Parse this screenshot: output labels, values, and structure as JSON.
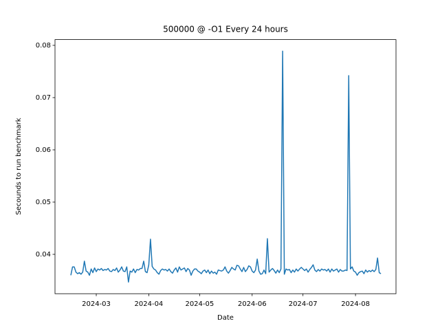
{
  "chart_data": {
    "type": "line",
    "title": "500000 @ -O1 Every 24 hours",
    "x_label": "Date",
    "y_label": "Secounds to run benchmark",
    "color": "#1f77b4",
    "x": [
      45,
      46,
      47,
      48,
      49,
      50,
      51,
      52,
      53,
      54,
      55,
      56,
      57,
      58,
      59,
      60,
      61,
      62,
      63,
      64,
      65,
      66,
      67,
      68,
      69,
      70,
      71,
      72,
      73,
      74,
      75,
      76,
      77,
      78,
      79,
      80,
      81,
      82,
      83,
      84,
      85,
      86,
      87,
      88,
      89,
      90,
      91,
      92,
      93,
      94,
      95,
      96,
      97,
      98,
      99,
      100,
      101,
      102,
      103,
      104,
      105,
      106,
      107,
      108,
      109,
      110,
      111,
      112,
      113,
      114,
      115,
      116,
      117,
      118,
      119,
      120,
      121,
      122,
      123,
      124,
      125,
      126,
      127,
      128,
      129,
      130,
      131,
      132,
      133,
      134,
      135,
      136,
      137,
      138,
      139,
      140,
      141,
      142,
      143,
      144,
      145,
      146,
      147,
      148,
      149,
      150,
      151,
      152,
      153,
      154,
      155,
      156,
      157,
      158,
      159,
      160,
      161,
      162,
      163,
      164,
      165,
      166,
      167,
      168,
      169,
      170,
      171,
      172,
      173,
      174,
      175,
      176,
      177,
      178,
      179,
      180,
      181,
      182,
      183,
      184,
      185,
      186,
      187,
      188,
      189,
      190,
      191,
      192,
      193,
      194,
      195,
      196,
      197,
      198,
      199,
      200,
      201,
      202,
      203,
      204,
      205,
      206,
      207,
      208,
      209,
      210,
      211,
      212,
      213,
      214,
      215,
      216,
      217,
      218,
      219,
      220,
      221,
      222,
      223,
      224,
      225,
      226,
      227,
      228
    ],
    "values": [
      0.036,
      0.0376,
      0.0376,
      0.0366,
      0.0363,
      0.0365,
      0.0362,
      0.0366,
      0.0387,
      0.0368,
      0.0366,
      0.036,
      0.0372,
      0.0365,
      0.0374,
      0.0367,
      0.0372,
      0.037,
      0.0373,
      0.0369,
      0.0371,
      0.037,
      0.0373,
      0.0368,
      0.0367,
      0.0371,
      0.0369,
      0.0374,
      0.0366,
      0.037,
      0.0376,
      0.0368,
      0.0367,
      0.0376,
      0.0347,
      0.0368,
      0.0366,
      0.0372,
      0.0365,
      0.0371,
      0.037,
      0.0373,
      0.0373,
      0.0387,
      0.0367,
      0.0365,
      0.038,
      0.0429,
      0.0377,
      0.0372,
      0.037,
      0.0365,
      0.0362,
      0.0369,
      0.0372,
      0.037,
      0.0371,
      0.0368,
      0.0372,
      0.0367,
      0.0364,
      0.037,
      0.0374,
      0.0366,
      0.0376,
      0.037,
      0.0372,
      0.0374,
      0.0367,
      0.0373,
      0.037,
      0.036,
      0.0368,
      0.0372,
      0.0372,
      0.0368,
      0.0366,
      0.0363,
      0.0368,
      0.037,
      0.0365,
      0.037,
      0.0363,
      0.0368,
      0.0364,
      0.0366,
      0.0362,
      0.037,
      0.0369,
      0.0368,
      0.037,
      0.0376,
      0.0368,
      0.0364,
      0.0369,
      0.0375,
      0.0372,
      0.037,
      0.0379,
      0.0378,
      0.0372,
      0.0367,
      0.0375,
      0.0367,
      0.0371,
      0.0378,
      0.0376,
      0.0368,
      0.0365,
      0.037,
      0.0391,
      0.0368,
      0.0362,
      0.0363,
      0.037,
      0.0363,
      0.043,
      0.0366,
      0.037,
      0.0373,
      0.0369,
      0.0364,
      0.037,
      0.0365,
      0.0372,
      0.0789,
      0.0362,
      0.0372,
      0.037,
      0.0371,
      0.0365,
      0.037,
      0.0366,
      0.0372,
      0.0368,
      0.0372,
      0.0375,
      0.0372,
      0.0369,
      0.0372,
      0.0366,
      0.0371,
      0.0375,
      0.038,
      0.037,
      0.0367,
      0.0371,
      0.0368,
      0.0372,
      0.037,
      0.0371,
      0.0368,
      0.0372,
      0.0366,
      0.0372,
      0.0368,
      0.037,
      0.0372,
      0.0366,
      0.0371,
      0.0368,
      0.0368,
      0.037,
      0.0369,
      0.0742,
      0.0372,
      0.0376,
      0.0368,
      0.0366,
      0.036,
      0.0365,
      0.0367,
      0.0368,
      0.0363,
      0.037,
      0.0366,
      0.0369,
      0.0367,
      0.037,
      0.0367,
      0.0371,
      0.0393,
      0.0365,
      0.0363
    ],
    "xlim": [
      35.65,
      236.9
    ],
    "xticks": [
      {
        "value": 60,
        "label": "2024-03"
      },
      {
        "value": 91,
        "label": "2024-04"
      },
      {
        "value": 121,
        "label": "2024-05"
      },
      {
        "value": 152,
        "label": "2024-06"
      },
      {
        "value": 182,
        "label": "2024-07"
      },
      {
        "value": 213,
        "label": "2024-08"
      }
    ],
    "ylim": [
      0.03247,
      0.0811
    ],
    "yticks": [
      0.04,
      0.05,
      0.06,
      0.07,
      0.08
    ]
  }
}
